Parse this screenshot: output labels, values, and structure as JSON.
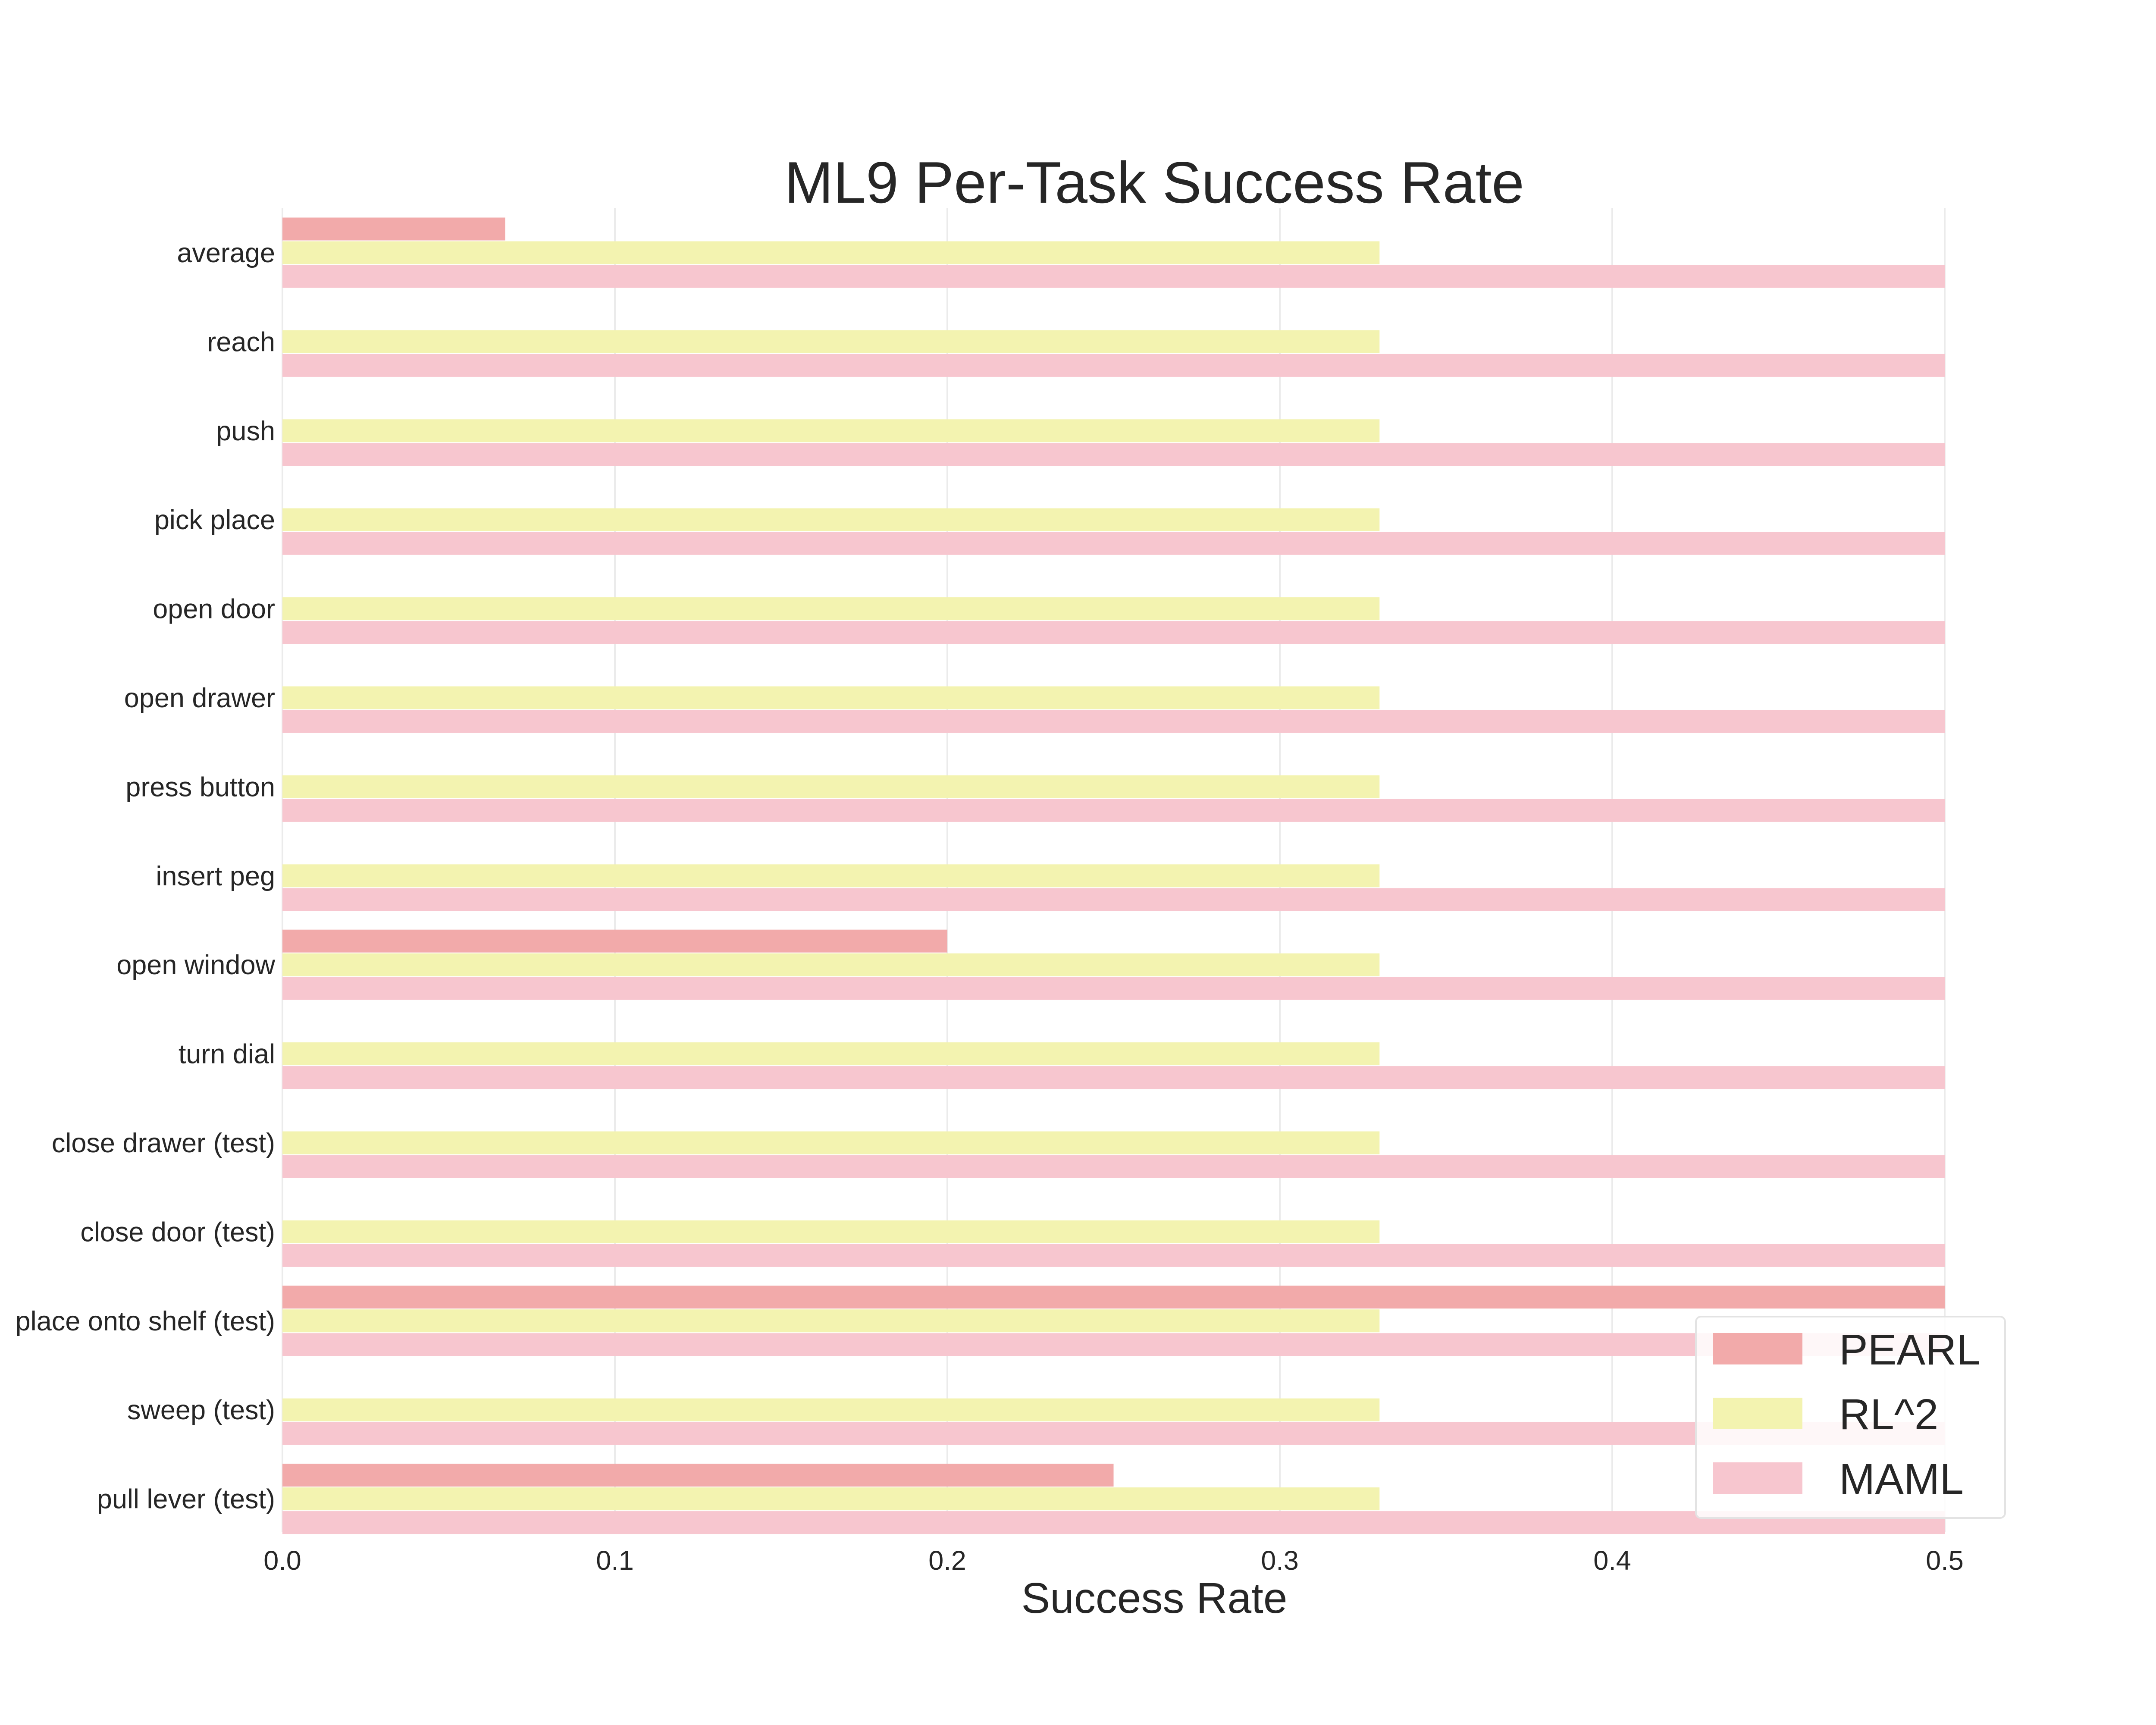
{
  "chart_data": {
    "type": "bar",
    "orientation": "horizontal",
    "title": "ML9 Per-Task Success Rate",
    "xlabel": "Success Rate",
    "ylabel": "",
    "xlim": [
      0.0,
      0.5
    ],
    "xticks": [
      "0.0",
      "0.1",
      "0.2",
      "0.3",
      "0.4",
      "0.5"
    ],
    "grid": true,
    "legend_position": "bottom-right",
    "categories": [
      "average",
      "reach",
      "push",
      "pick place",
      "open door",
      "open drawer",
      "press button",
      "insert peg",
      "open window",
      "turn dial",
      "close drawer (test)",
      "close door (test)",
      "place onto shelf (test)",
      "sweep (test)",
      "pull lever (test)"
    ],
    "series": [
      {
        "name": "PEARL",
        "color": "#f2aaaa",
        "values": [
          0.067,
          0.0,
          0.0,
          0.0,
          0.0,
          0.0,
          0.0,
          0.0,
          0.2,
          0.0,
          0.0,
          0.0,
          0.5,
          0.0,
          0.25
        ]
      },
      {
        "name": "RL^2",
        "color": "#f3f3b0",
        "values": [
          0.33,
          0.33,
          0.33,
          0.33,
          0.33,
          0.33,
          0.33,
          0.33,
          0.33,
          0.33,
          0.33,
          0.33,
          0.33,
          0.33,
          0.33
        ]
      },
      {
        "name": "MAML",
        "color": "#f7c6cf",
        "values": [
          0.5,
          0.5,
          0.5,
          0.5,
          0.5,
          0.5,
          0.5,
          0.5,
          0.5,
          0.5,
          0.5,
          0.5,
          0.5,
          0.5,
          0.5
        ]
      }
    ]
  }
}
